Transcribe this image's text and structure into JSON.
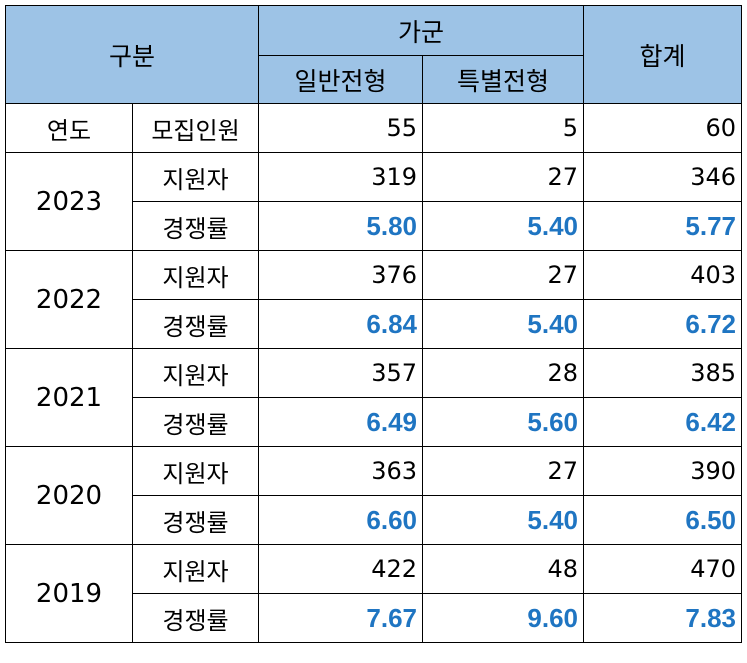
{
  "header": {
    "category": "구분",
    "group": "가군",
    "general": "일반전형",
    "special": "특별전형",
    "total": "합계"
  },
  "quota": {
    "year_label": "연도",
    "label": "모집인원",
    "general": "55",
    "special": "5",
    "total": "60"
  },
  "applicants_label": "지원자",
  "rate_label": "경쟁률",
  "years": [
    {
      "year": "2023",
      "applicants": {
        "general": "319",
        "special": "27",
        "total": "346"
      },
      "rate": {
        "general": "5.80",
        "special": "5.40",
        "total": "5.77"
      }
    },
    {
      "year": "2022",
      "applicants": {
        "general": "376",
        "special": "27",
        "total": "403"
      },
      "rate": {
        "general": "6.84",
        "special": "5.40",
        "total": "6.72"
      }
    },
    {
      "year": "2021",
      "applicants": {
        "general": "357",
        "special": "28",
        "total": "385"
      },
      "rate": {
        "general": "6.49",
        "special": "5.60",
        "total": "6.42"
      }
    },
    {
      "year": "2020",
      "applicants": {
        "general": "363",
        "special": "27",
        "total": "390"
      },
      "rate": {
        "general": "6.60",
        "special": "5.40",
        "total": "6.50"
      }
    },
    {
      "year": "2019",
      "applicants": {
        "general": "422",
        "special": "48",
        "total": "470"
      },
      "rate": {
        "general": "7.67",
        "special": "9.60",
        "total": "7.83"
      }
    }
  ],
  "colors": {
    "header_bg": "#9dc3e6",
    "rate_text": "#1f75c2",
    "border": "#000000"
  }
}
